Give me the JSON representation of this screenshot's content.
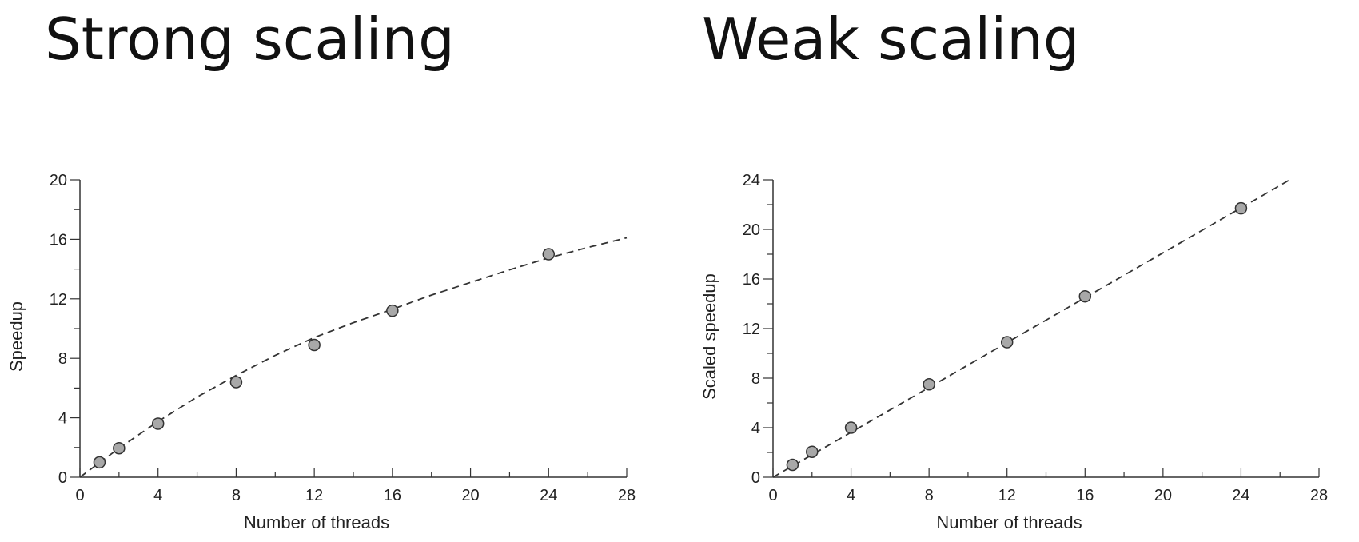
{
  "slide": {
    "left_title": "Strong scaling",
    "right_title": "Weak scaling"
  },
  "chart_data": [
    {
      "type": "scatter",
      "title": "Strong scaling",
      "xlabel": "Number of threads",
      "ylabel": "Speedup",
      "xlim": [
        0,
        28
      ],
      "ylim": [
        0,
        20
      ],
      "xticks": [
        0,
        4,
        8,
        12,
        16,
        20,
        24,
        28
      ],
      "yticks": [
        0,
        4,
        8,
        12,
        16,
        20
      ],
      "grid": false,
      "series": [
        {
          "kind": "points",
          "x": [
            1,
            2,
            4,
            8,
            12,
            16,
            24
          ],
          "y": [
            1.0,
            1.95,
            3.6,
            6.4,
            8.9,
            11.2,
            15.0
          ],
          "color": "#a8a8a8"
        },
        {
          "kind": "dashed-fit",
          "x": [
            0,
            2,
            4,
            6,
            8,
            10,
            12,
            14,
            16,
            18,
            20,
            22,
            24,
            26,
            28
          ],
          "y": [
            0,
            1.95,
            3.75,
            5.4,
            6.85,
            8.2,
            9.4,
            10.4,
            11.3,
            12.25,
            13.1,
            13.95,
            14.75,
            15.45,
            16.1
          ],
          "color": "#333333"
        }
      ]
    },
    {
      "type": "scatter",
      "title": "Weak scaling",
      "xlabel": "Number of threads",
      "ylabel": "Scaled speedup",
      "xlim": [
        0,
        28
      ],
      "ylim": [
        0,
        24
      ],
      "xticks": [
        0,
        4,
        8,
        12,
        16,
        20,
        24,
        28
      ],
      "yticks": [
        0,
        4,
        8,
        12,
        16,
        20,
        24
      ],
      "grid": false,
      "series": [
        {
          "kind": "points",
          "x": [
            1,
            2,
            4,
            8,
            12,
            16,
            24
          ],
          "y": [
            1.0,
            2.05,
            4.0,
            7.5,
            10.9,
            14.6,
            21.7
          ],
          "color": "#a8a8a8"
        },
        {
          "kind": "dashed-fit",
          "x": [
            0,
            26.5
          ],
          "y": [
            0,
            24
          ],
          "color": "#333333"
        }
      ]
    }
  ]
}
